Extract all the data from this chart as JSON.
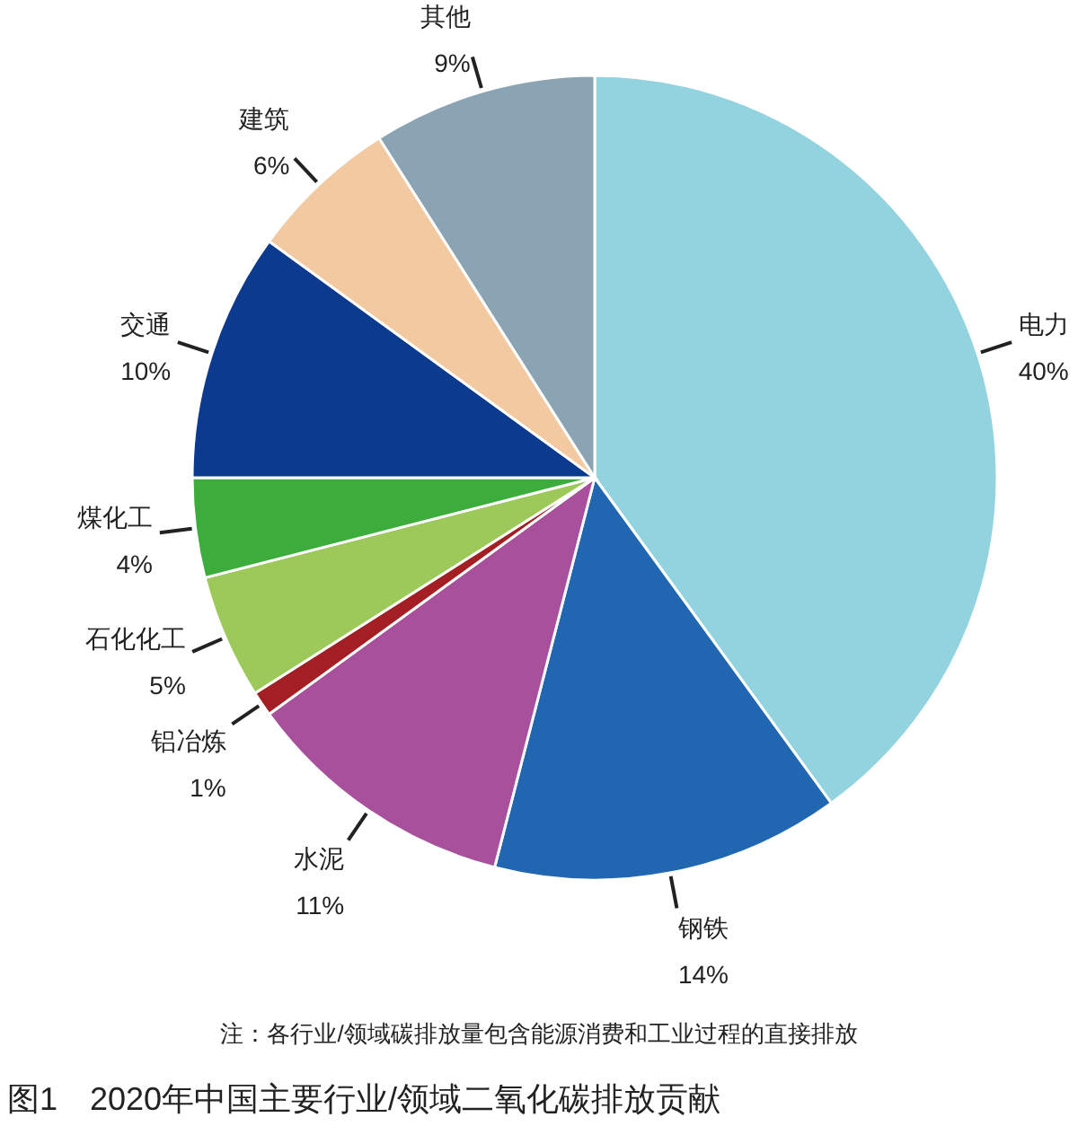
{
  "chart_data": {
    "type": "pie",
    "title": "图1　2020年中国主要行业/领域二氧化碳排放贡献",
    "annotations": [
      "注：各行业/领域碳排放量包含能源消费和工业过程的直接排放"
    ],
    "categories": [
      "电力",
      "钢铁",
      "水泥",
      "铝冶炼",
      "石化化工",
      "煤化工",
      "交通",
      "建筑",
      "其他"
    ],
    "values": [
      40,
      14,
      11,
      1,
      5,
      4,
      10,
      6,
      9
    ],
    "colors": [
      "#93d3df",
      "#2166b0",
      "#a8509b",
      "#a31f24",
      "#9cc95a",
      "#3cad3c",
      "#0b3a8f",
      "#f2c9a0",
      "#8aa4b3"
    ],
    "value_labels": [
      "40%",
      "14%",
      "11%",
      "1%",
      "5%",
      "4%",
      "10%",
      "6%",
      "9%"
    ]
  }
}
